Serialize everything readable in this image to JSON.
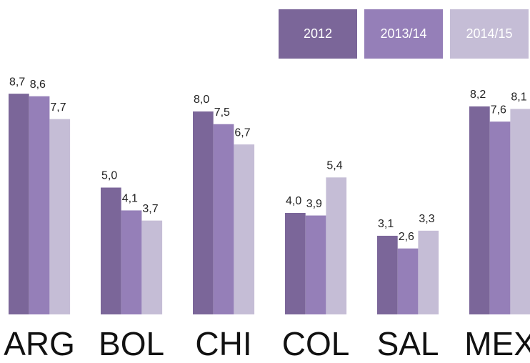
{
  "chart_data": {
    "type": "bar",
    "categories": [
      "ARG",
      "BOL",
      "CHI",
      "COL",
      "SAL",
      "MEX"
    ],
    "series": [
      {
        "name": "2012",
        "color": "#7b6699",
        "values": [
          8.7,
          5.0,
          8.0,
          4.0,
          3.1,
          8.2
        ],
        "value_labels": [
          "8,7",
          "5,0",
          "8,0",
          "4,0",
          "3,1",
          "8,2"
        ]
      },
      {
        "name": "2013/14",
        "color": "#957fb8",
        "values": [
          8.6,
          4.1,
          7.5,
          3.9,
          2.6,
          7.6
        ],
        "value_labels": [
          "8,6",
          "4,1",
          "7,5",
          "3,9",
          "2,6",
          "7,6"
        ]
      },
      {
        "name": "2014/15",
        "color": "#c5bdd6",
        "values": [
          7.7,
          3.7,
          6.7,
          5.4,
          3.3,
          8.1
        ],
        "value_labels": [
          "7,7",
          "3,7",
          "6,7",
          "5,4",
          "3,3",
          "8,1"
        ]
      }
    ],
    "ylim": [
      0,
      10
    ],
    "legend": "top-right"
  }
}
